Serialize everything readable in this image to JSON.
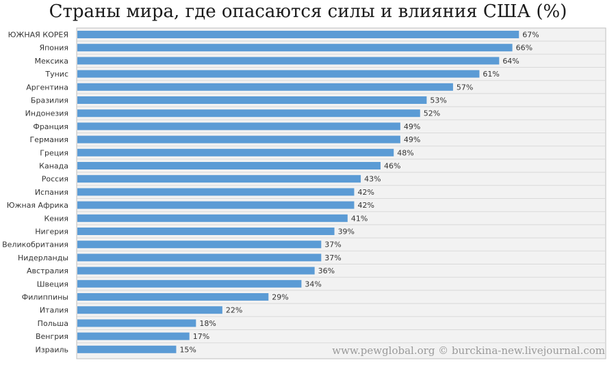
{
  "chart_data": {
    "type": "bar",
    "orientation": "horizontal",
    "title": "Страны мира, где опасаются силы и влияния США (%)",
    "categories": [
      "ЮЖНАЯ КОРЕЯ",
      "Япония",
      "Мексика",
      "Тунис",
      "Аргентина",
      "Бразилия",
      "Индонезия",
      "Франция",
      "Германия",
      "Греция",
      "Канада",
      "Россия",
      "Испания",
      "Южная Африка",
      "Кения",
      "Нигерия",
      "Великобритания",
      "Нидерланды",
      "Австралия",
      "Швеция",
      "Филиппины",
      "Италия",
      "Польша",
      "Венгрия",
      "Израиль"
    ],
    "values": [
      67,
      66,
      64,
      61,
      57,
      53,
      52,
      49,
      49,
      48,
      46,
      43,
      42,
      42,
      41,
      39,
      37,
      37,
      36,
      34,
      29,
      22,
      18,
      17,
      15
    ],
    "data_labels": [
      "67%",
      "66%",
      "64%",
      "61%",
      "57%",
      "53%",
      "52%",
      "49%",
      "49%",
      "48%",
      "46%",
      "43%",
      "42%",
      "42%",
      "41%",
      "39%",
      "37%",
      "37%",
      "36%",
      "34%",
      "29%",
      "22%",
      "18%",
      "17%",
      "15%"
    ],
    "xlim": [
      0,
      80
    ],
    "grid": true,
    "bar_color": "#5b9bd5",
    "plot_background": "#f2f2f2",
    "grid_color": "#d9d9d9"
  },
  "watermark": "www.pewglobal.org © burckina-new.livejournal.com"
}
